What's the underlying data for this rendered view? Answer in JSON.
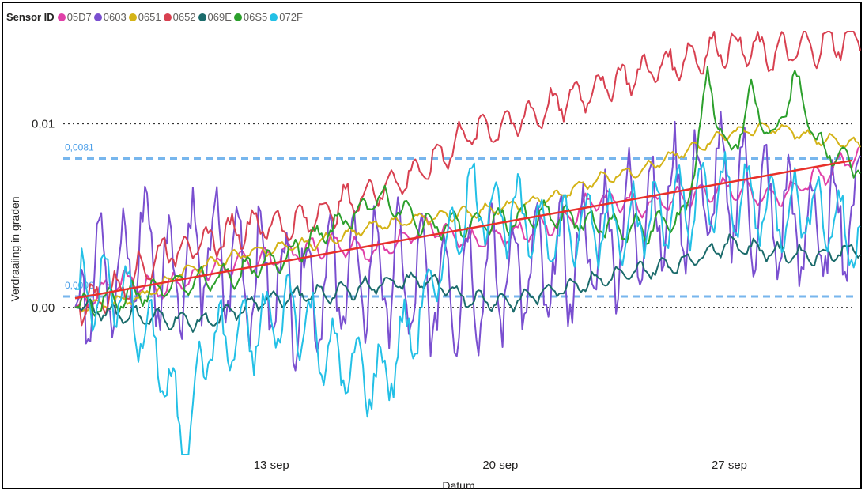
{
  "legend": {
    "title": "Sensor ID"
  },
  "chart_data": {
    "type": "line",
    "xlabel": "Datum",
    "ylabel": "Verdraaiing in graden",
    "x_range": [
      "2021-09-07",
      "2021-10-01"
    ],
    "ylim": [
      -0.008,
      0.015
    ],
    "y_ticks": [
      {
        "value": 0.0,
        "label": "0,00"
      },
      {
        "value": 0.01,
        "label": "0,01"
      }
    ],
    "x_ticks": [
      {
        "date": "2021-09-13",
        "label": "13 sep"
      },
      {
        "date": "2021-09-20",
        "label": "20 sep"
      },
      {
        "date": "2021-09-27",
        "label": "27 sep"
      }
    ],
    "reference_lines": [
      {
        "value": 0.0081,
        "label": "0,0081",
        "color": "#4a9ee8"
      },
      {
        "value": 0.0006,
        "label": "0,0006",
        "color": "#4a9ee8"
      }
    ],
    "trend_line": {
      "from": [
        "2021-09-07",
        0.0005
      ],
      "to": [
        "2021-10-01",
        0.008
      ],
      "color": "#e8302a"
    },
    "series": [
      {
        "name": "05D7",
        "color": "#e040a8",
        "points": [
          [
            0,
            0
          ],
          [
            2,
            0.0015
          ],
          [
            4,
            0.001
          ],
          [
            6,
            0.002
          ],
          [
            8,
            0.0025
          ],
          [
            10,
            0.003
          ],
          [
            12,
            0.0035
          ],
          [
            14,
            0.003
          ],
          [
            16,
            0.0045
          ],
          [
            18,
            0.0035
          ],
          [
            20,
            0.004
          ],
          [
            22,
            0.0045
          ],
          [
            24,
            0.006
          ],
          [
            26,
            0.0055
          ],
          [
            28,
            0.006
          ],
          [
            30,
            0.0065
          ],
          [
            32,
            0.006
          ],
          [
            34,
            0.007
          ],
          [
            36,
            0.0085
          ]
        ],
        "noise": 0.0007,
        "period": 1
      },
      {
        "name": "0603",
        "color": "#7a4fd0",
        "points": [
          [
            0,
            0
          ],
          [
            1,
            0.003
          ],
          [
            2,
            0.001
          ],
          [
            3,
            0.004
          ],
          [
            4,
            0.002
          ],
          [
            6,
            0.003
          ],
          [
            8,
            0.002
          ],
          [
            10,
            0.001
          ],
          [
            12,
            0.0015
          ],
          [
            14,
            0.002
          ],
          [
            16,
            0.001
          ],
          [
            18,
            0.0015
          ],
          [
            20,
            0.002
          ],
          [
            22,
            0.002
          ],
          [
            24,
            0.0035
          ],
          [
            26,
            0.005
          ],
          [
            28,
            0.006
          ],
          [
            30,
            0.0065
          ],
          [
            32,
            0.005
          ],
          [
            34,
            0.004
          ],
          [
            36,
            0.0055
          ]
        ],
        "noise": 0.0045,
        "period": 1
      },
      {
        "name": "0651",
        "color": "#d4b317",
        "points": [
          [
            0,
            0
          ],
          [
            3,
            0.0005
          ],
          [
            5,
            0.002
          ],
          [
            8,
            0.003
          ],
          [
            11,
            0.0035
          ],
          [
            14,
            0.0045
          ],
          [
            17,
            0.005
          ],
          [
            20,
            0.0055
          ],
          [
            22,
            0.006
          ],
          [
            24,
            0.007
          ],
          [
            26,
            0.0075
          ],
          [
            28,
            0.0085
          ],
          [
            30,
            0.0095
          ],
          [
            32,
            0.0098
          ],
          [
            34,
            0.0092
          ],
          [
            36,
            0.0088
          ]
        ],
        "noise": 0.0004,
        "period": 1
      },
      {
        "name": "0652",
        "color": "#d84050",
        "points": [
          [
            0,
            0
          ],
          [
            2,
            0.001
          ],
          [
            4,
            0.003
          ],
          [
            6,
            0.0035
          ],
          [
            8,
            0.0045
          ],
          [
            10,
            0.0045
          ],
          [
            12,
            0.0055
          ],
          [
            14,
            0.0065
          ],
          [
            16,
            0.0075
          ],
          [
            18,
            0.0095
          ],
          [
            20,
            0.01
          ],
          [
            22,
            0.011
          ],
          [
            24,
            0.012
          ],
          [
            26,
            0.0128
          ],
          [
            28,
            0.0135
          ],
          [
            30,
            0.0142
          ],
          [
            32,
            0.0138
          ],
          [
            34,
            0.0142
          ],
          [
            36,
            0.0148
          ]
        ],
        "noise": 0.0012,
        "period": 1
      },
      {
        "name": "069E",
        "color": "#1b6b6b",
        "points": [
          [
            0,
            0
          ],
          [
            3,
            -0.0005
          ],
          [
            6,
            -0.0008
          ],
          [
            9,
            0.0005
          ],
          [
            12,
            0.0008
          ],
          [
            14,
            0.0013
          ],
          [
            16,
            0.0015
          ],
          [
            18,
            0.0005
          ],
          [
            20,
            0.0003
          ],
          [
            22,
            0.001
          ],
          [
            24,
            0.0015
          ],
          [
            26,
            0.002
          ],
          [
            28,
            0.0025
          ],
          [
            30,
            0.0035
          ],
          [
            32,
            0.003
          ],
          [
            34,
            0.0028
          ],
          [
            36,
            0.0032
          ]
        ],
        "noise": 0.0006,
        "period": 1
      },
      {
        "name": "06S5",
        "color": "#2ca02c",
        "points": [
          [
            0,
            0
          ],
          [
            2,
            0.0005
          ],
          [
            4,
            0.001
          ],
          [
            6,
            0.0015
          ],
          [
            8,
            0.002
          ],
          [
            10,
            0.003
          ],
          [
            12,
            0.0045
          ],
          [
            14,
            0.006
          ],
          [
            16,
            0.0045
          ],
          [
            18,
            0.0045
          ],
          [
            20,
            0.0048
          ],
          [
            22,
            0.005
          ],
          [
            24,
            0.0045
          ],
          [
            26,
            0.0042
          ],
          [
            28,
            0.005
          ],
          [
            29,
            0.0125
          ],
          [
            30,
            0.008
          ],
          [
            31,
            0.0115
          ],
          [
            32,
            0.009
          ],
          [
            33,
            0.0125
          ],
          [
            34,
            0.009
          ],
          [
            36,
            0.0075
          ]
        ],
        "noise": 0.0009,
        "period": 1
      },
      {
        "name": "072F",
        "color": "#23c0e6",
        "points": [
          [
            0,
            0.001
          ],
          [
            2,
            0.001
          ],
          [
            4,
            -0.003
          ],
          [
            5,
            -0.0077
          ],
          [
            6,
            -0.002
          ],
          [
            8,
            -0.0015
          ],
          [
            10,
            0
          ],
          [
            12,
            -0.003
          ],
          [
            14,
            -0.004
          ],
          [
            16,
            0
          ],
          [
            18,
            0.006
          ],
          [
            20,
            0.005
          ],
          [
            22,
            0.004
          ],
          [
            24,
            0.0045
          ],
          [
            26,
            0.0048
          ],
          [
            28,
            0.0055
          ],
          [
            30,
            0.0062
          ],
          [
            32,
            0.0052
          ],
          [
            34,
            0.0055
          ],
          [
            36,
            0.0035
          ]
        ],
        "noise": 0.0025,
        "period": 1
      }
    ]
  }
}
